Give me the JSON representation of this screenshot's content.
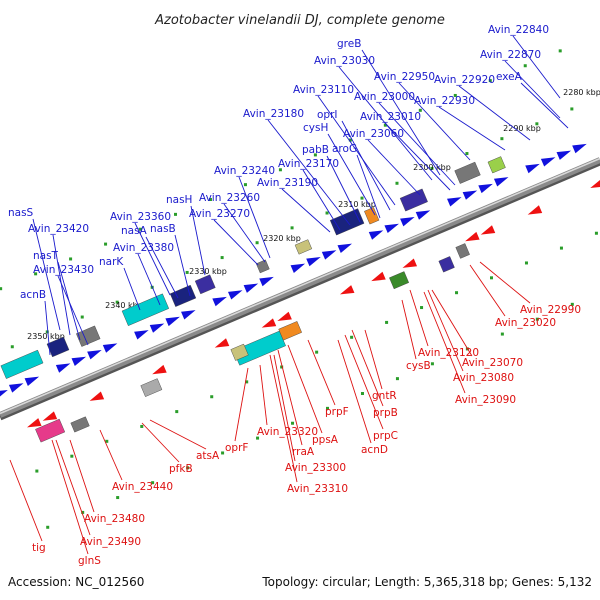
{
  "map": {
    "title": "Azotobacter vinelandii DJ, complete genome",
    "accession": "Accession: NC_012560",
    "summary": "Topology: circular; Length: 5,365,318 bp; Genes: 5,132"
  },
  "colors": {
    "forward_label": "#1a1acc",
    "reverse_label": "#dd1111",
    "forward_arrow": "#1111dd",
    "reverse_arrow": "#ee1111",
    "axis": "#8a8a8a",
    "tick": "#2a9d2a"
  },
  "scale_ticks": [
    "2280 kbp",
    "2290 kbp",
    "2300 kbp",
    "2310 kbp",
    "2320 kbp",
    "2330 kbp",
    "2340 kbp",
    "2350 kbp"
  ],
  "forward_genes": [
    "Avin_22840",
    "Avin_22870",
    "exeA",
    "Avin_22920",
    "Avin_22930",
    "Avin_22950",
    "greB",
    "Avin_23030",
    "Avin_23000",
    "Avin_23010",
    "Avin_23060",
    "Avin_23110",
    "oprI",
    "Avin_23180",
    "cysH",
    "pabB",
    "aroG",
    "Avin_23170",
    "Avin_23190",
    "Avin_23240",
    "Avin_23260",
    "Avin_23270",
    "nasH",
    "Avin_23360",
    "nasA",
    "nasB",
    "Avin_23380",
    "narK",
    "nasS",
    "Avin_23420",
    "nasT",
    "Avin_23430",
    "acnB"
  ],
  "reverse_genes": [
    "Avin_22990",
    "Avin_23020",
    "Avin_23070",
    "Avin_23080",
    "Avin_23090",
    "Avin_23120",
    "cysB",
    "gntR",
    "prpB",
    "prpC",
    "acnD",
    "prpF",
    "ppsA",
    "rraA",
    "Avin_23300",
    "Avin_23310",
    "Avin_23320",
    "oprF",
    "atsA",
    "pfkB",
    "Avin_23440",
    "Avin_23480",
    "Avin_23490",
    "glnS",
    "tig"
  ]
}
